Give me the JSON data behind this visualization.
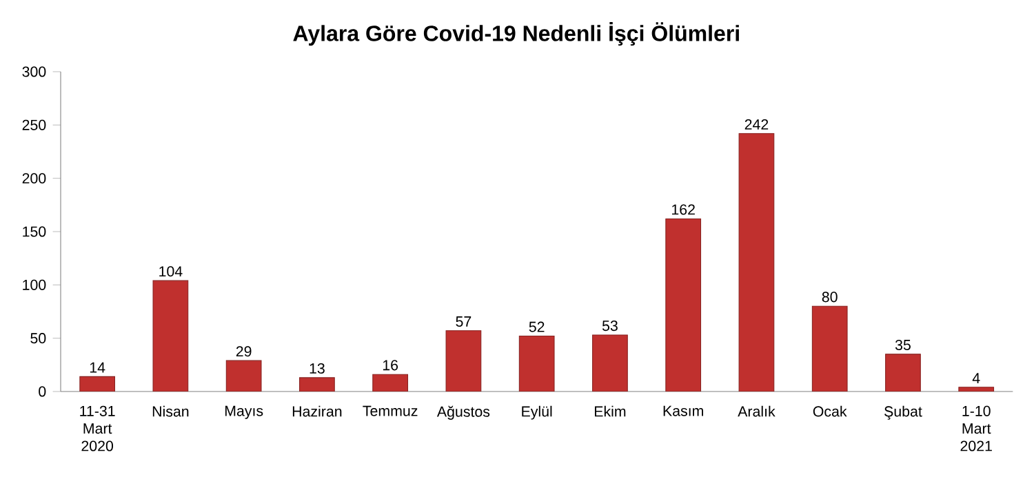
{
  "chart_data": {
    "type": "bar",
    "title": "Aylara Göre Covid-19 Nedenli İşçi Ölümleri",
    "categories": [
      "11-31 Mart 2020",
      "Nisan",
      "Mayıs",
      "Haziran",
      "Temmuz",
      "Ağustos",
      "Eylül",
      "Ekim",
      "Kasım",
      "Aralık",
      "Ocak",
      "Şubat",
      "1-10 Mart 2021"
    ],
    "values": [
      14,
      104,
      29,
      13,
      16,
      57,
      52,
      53,
      162,
      242,
      80,
      35,
      4
    ],
    "color": "#c0302e",
    "ylim": [
      0,
      300
    ],
    "yticks": [
      0,
      50,
      100,
      150,
      200,
      250,
      300
    ],
    "data_labels": true
  }
}
